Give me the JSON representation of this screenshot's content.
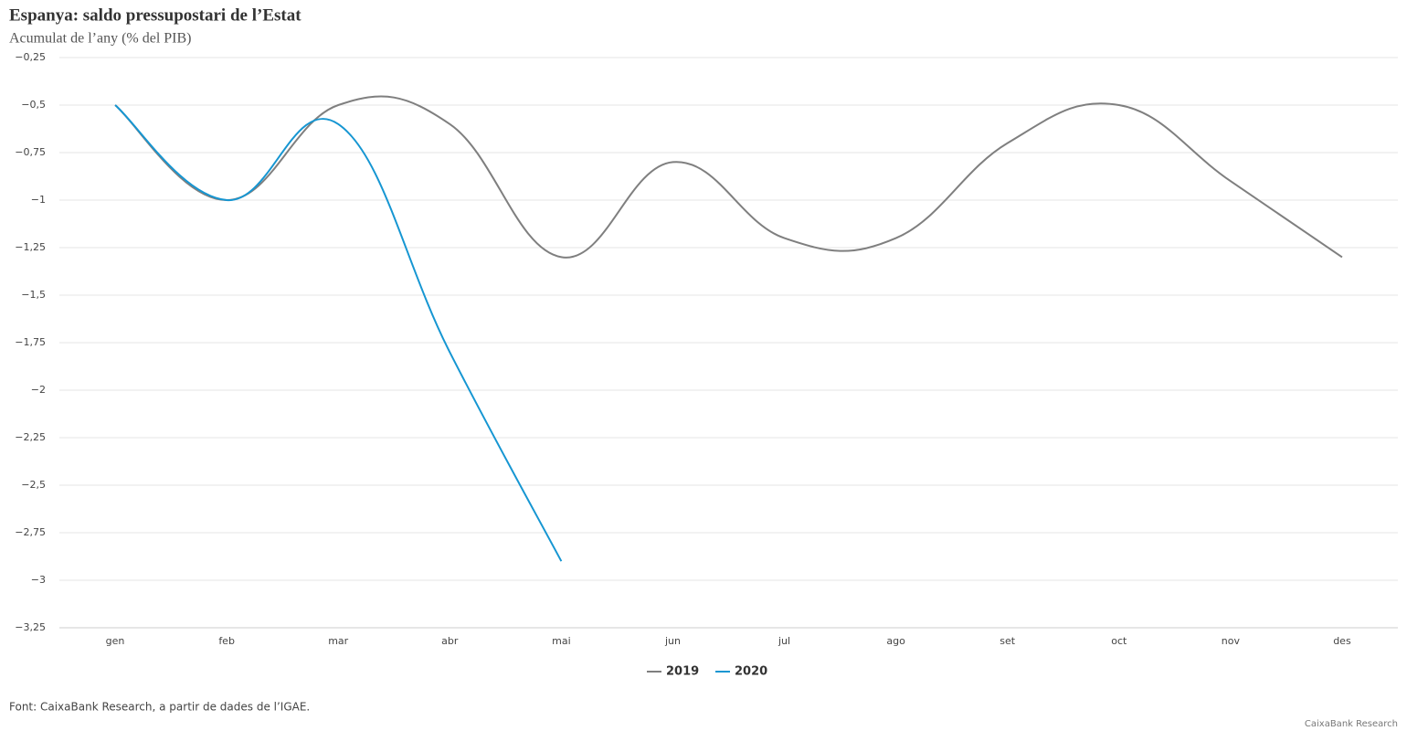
{
  "chart_data": {
    "type": "line",
    "title": "Espanya: saldo pressupostari de l’Estat",
    "subtitle": "Acumulat de l’any (% del PIB)",
    "categories": [
      "gen",
      "feb",
      "mar",
      "abr",
      "mai",
      "jun",
      "jul",
      "ago",
      "set",
      "oct",
      "nov",
      "des"
    ],
    "series": [
      {
        "name": "2019",
        "color": "#7f7f7f",
        "values": [
          -0.5,
          -1,
          -0.5,
          -0.6,
          -1.3,
          -0.8,
          -1.2,
          -1.2,
          -0.7,
          -0.5,
          -0.9,
          -1.3
        ]
      },
      {
        "name": "2020",
        "color": "#1696d2",
        "values": [
          -0.5,
          -1,
          -0.6,
          -1.8,
          -2.9,
          null,
          null,
          null,
          null,
          null,
          null,
          null
        ]
      }
    ],
    "ylim": [
      -3.25,
      -0.25
    ],
    "yticks": [
      {
        "value": -0.25,
        "label": "−0,25"
      },
      {
        "value": -0.5,
        "label": "−0,5"
      },
      {
        "value": -0.75,
        "label": "−0,75"
      },
      {
        "value": -1,
        "label": "−1"
      },
      {
        "value": -1.25,
        "label": "−1,25"
      },
      {
        "value": -1.5,
        "label": "−1,5"
      },
      {
        "value": -1.75,
        "label": "−1,75"
      },
      {
        "value": -2,
        "label": "−2"
      },
      {
        "value": -2.25,
        "label": "−2,25"
      },
      {
        "value": -2.5,
        "label": "−2,5"
      },
      {
        "value": -2.75,
        "label": "−2,75"
      },
      {
        "value": -3,
        "label": "−3"
      },
      {
        "value": -3.25,
        "label": "−3,25"
      }
    ],
    "grid": true,
    "legend": "bottom",
    "source": "Font: CaixaBank Research, a partir de dades de l’IGAE.",
    "credit": "CaixaBank Research"
  }
}
